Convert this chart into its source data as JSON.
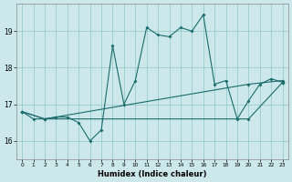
{
  "title": "",
  "xlabel": "Humidex (Indice chaleur)",
  "ylabel": "",
  "bg_color": "#cce8ea",
  "grid_color": "#99cccc",
  "line_color": "#1a6b6b",
  "xlim": [
    -0.5,
    23.5
  ],
  "ylim": [
    15.5,
    19.75
  ],
  "yticks": [
    16,
    17,
    18,
    19
  ],
  "xticks": [
    0,
    1,
    2,
    3,
    4,
    5,
    6,
    7,
    8,
    9,
    10,
    11,
    12,
    13,
    14,
    15,
    16,
    17,
    18,
    19,
    20,
    21,
    22,
    23
  ],
  "line1_x": [
    0,
    1,
    2,
    3,
    4,
    5,
    6,
    7,
    8,
    9,
    10,
    11,
    12,
    13,
    14,
    15,
    16,
    17,
    18,
    19,
    20,
    21,
    22,
    23
  ],
  "line1_y": [
    16.8,
    16.6,
    16.6,
    16.65,
    16.65,
    16.5,
    16.0,
    16.3,
    18.6,
    17.0,
    17.65,
    19.1,
    18.9,
    18.85,
    19.1,
    19.0,
    19.45,
    17.55,
    17.65,
    16.6,
    17.1,
    17.55,
    17.7,
    17.6
  ],
  "line2_x": [
    0,
    2,
    20,
    23
  ],
  "line2_y": [
    16.8,
    16.6,
    16.6,
    17.6
  ],
  "line3_x": [
    0,
    2,
    20,
    23
  ],
  "line3_y": [
    16.8,
    16.6,
    17.55,
    17.65
  ]
}
